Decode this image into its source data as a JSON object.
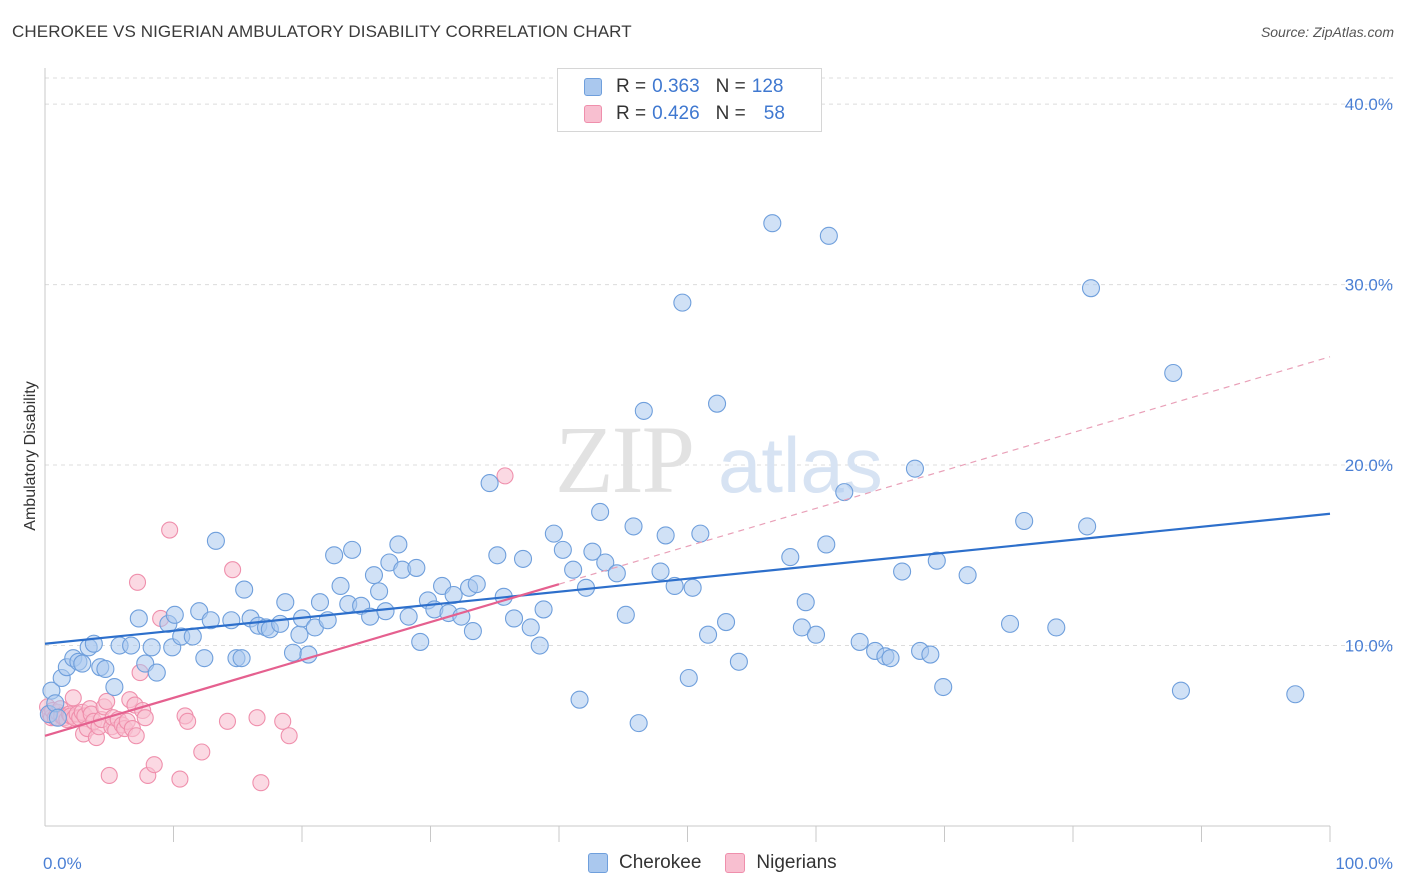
{
  "header": {
    "title": "CHEROKEE VS NIGERIAN AMBULATORY DISABILITY CORRELATION CHART",
    "source": "Source: ZipAtlas.com"
  },
  "legend": {
    "rows": [
      {
        "r_label": "R =",
        "r_value": "0.363",
        "n_label": "N =",
        "n_value": "128"
      },
      {
        "r_label": "R =",
        "r_value": "0.426",
        "n_label": "N =",
        "n_value": "58"
      }
    ]
  },
  "watermark": {
    "zip": "ZIP",
    "atlas": "atlas"
  },
  "colors": {
    "cherokee_fill": "#aac8ee",
    "cherokee_stroke": "#6f9fdc",
    "cherokee_line": "#2d6fcb",
    "nigerian_fill": "#f8bfd0",
    "nigerian_stroke": "#ef8fac",
    "nigerian_line": "#e5608f",
    "tick_text": "#4a7fd4"
  },
  "chart_data": {
    "type": "scatter",
    "title": "CHEROKEE VS NIGERIAN AMBULATORY DISABILITY CORRELATION CHART",
    "xlabel": "",
    "ylabel": "Ambulatory Disability",
    "xlim": [
      0,
      100
    ],
    "ylim": [
      0,
      42
    ],
    "x_tick_labels": [
      "0.0%",
      "100.0%"
    ],
    "y_ticks": [
      10,
      20,
      30,
      40
    ],
    "y_tick_labels": [
      "10.0%",
      "20.0%",
      "30.0%",
      "40.0%"
    ],
    "grid": true,
    "legend_position": "top-center",
    "series": [
      {
        "name": "Cherokee",
        "r": 0.363,
        "n": 128,
        "trend": {
          "x0": 0,
          "y0": 10.1,
          "x1": 100,
          "y1": 17.3
        },
        "points": [
          [
            0.3,
            6.2
          ],
          [
            0.5,
            7.5
          ],
          [
            0.8,
            6.8
          ],
          [
            1.0,
            6.0
          ],
          [
            1.3,
            8.2
          ],
          [
            1.7,
            8.8
          ],
          [
            2.2,
            9.3
          ],
          [
            2.6,
            9.1
          ],
          [
            2.9,
            9.0
          ],
          [
            3.4,
            9.9
          ],
          [
            3.8,
            10.1
          ],
          [
            4.3,
            8.8
          ],
          [
            4.7,
            8.7
          ],
          [
            5.4,
            7.7
          ],
          [
            5.8,
            10.0
          ],
          [
            6.7,
            10.0
          ],
          [
            7.3,
            11.5
          ],
          [
            7.8,
            9.0
          ],
          [
            8.3,
            9.9
          ],
          [
            8.7,
            8.5
          ],
          [
            9.6,
            11.2
          ],
          [
            9.9,
            9.9
          ],
          [
            10.1,
            11.7
          ],
          [
            10.6,
            10.5
          ],
          [
            11.5,
            10.5
          ],
          [
            12.0,
            11.9
          ],
          [
            12.4,
            9.3
          ],
          [
            12.9,
            11.4
          ],
          [
            13.3,
            15.8
          ],
          [
            14.5,
            11.4
          ],
          [
            14.9,
            9.3
          ],
          [
            15.3,
            9.3
          ],
          [
            15.5,
            13.1
          ],
          [
            16.0,
            11.5
          ],
          [
            16.6,
            11.1
          ],
          [
            17.2,
            11.0
          ],
          [
            17.5,
            10.9
          ],
          [
            18.3,
            11.2
          ],
          [
            18.7,
            12.4
          ],
          [
            19.3,
            9.6
          ],
          [
            19.8,
            10.6
          ],
          [
            20.0,
            11.5
          ],
          [
            20.5,
            9.5
          ],
          [
            21.0,
            11.0
          ],
          [
            21.4,
            12.4
          ],
          [
            22.0,
            11.4
          ],
          [
            22.5,
            15.0
          ],
          [
            23.0,
            13.3
          ],
          [
            23.6,
            12.3
          ],
          [
            23.9,
            15.3
          ],
          [
            24.6,
            12.2
          ],
          [
            25.3,
            11.6
          ],
          [
            25.6,
            13.9
          ],
          [
            26.0,
            13.0
          ],
          [
            26.5,
            11.9
          ],
          [
            26.8,
            14.6
          ],
          [
            27.5,
            15.6
          ],
          [
            27.8,
            14.2
          ],
          [
            28.3,
            11.6
          ],
          [
            28.9,
            14.3
          ],
          [
            29.2,
            10.2
          ],
          [
            29.8,
            12.5
          ],
          [
            30.3,
            12.0
          ],
          [
            30.9,
            13.3
          ],
          [
            31.4,
            11.8
          ],
          [
            31.8,
            12.8
          ],
          [
            32.4,
            11.6
          ],
          [
            33.0,
            13.2
          ],
          [
            33.3,
            10.8
          ],
          [
            33.6,
            13.4
          ],
          [
            34.6,
            19.0
          ],
          [
            35.2,
            15.0
          ],
          [
            35.7,
            12.7
          ],
          [
            36.5,
            11.5
          ],
          [
            37.2,
            14.8
          ],
          [
            37.8,
            11.0
          ],
          [
            38.5,
            10.0
          ],
          [
            38.8,
            12.0
          ],
          [
            39.6,
            16.2
          ],
          [
            40.3,
            15.3
          ],
          [
            41.1,
            14.2
          ],
          [
            41.6,
            7.0
          ],
          [
            42.1,
            13.2
          ],
          [
            42.6,
            15.2
          ],
          [
            43.2,
            17.4
          ],
          [
            43.6,
            14.6
          ],
          [
            44.5,
            14.0
          ],
          [
            45.2,
            11.7
          ],
          [
            45.8,
            16.6
          ],
          [
            46.2,
            5.7
          ],
          [
            46.6,
            23.0
          ],
          [
            47.9,
            14.1
          ],
          [
            48.3,
            16.1
          ],
          [
            49.0,
            13.3
          ],
          [
            49.6,
            29.0
          ],
          [
            50.1,
            8.2
          ],
          [
            50.4,
            13.2
          ],
          [
            51.0,
            16.2
          ],
          [
            51.6,
            10.6
          ],
          [
            52.3,
            23.4
          ],
          [
            53.0,
            11.3
          ],
          [
            54.0,
            9.1
          ],
          [
            56.6,
            33.4
          ],
          [
            58.0,
            14.9
          ],
          [
            58.9,
            11.0
          ],
          [
            59.2,
            12.4
          ],
          [
            60.0,
            10.6
          ],
          [
            60.8,
            15.6
          ],
          [
            61.0,
            32.7
          ],
          [
            62.2,
            18.5
          ],
          [
            63.4,
            10.2
          ],
          [
            64.6,
            9.7
          ],
          [
            65.4,
            9.4
          ],
          [
            65.8,
            9.3
          ],
          [
            66.7,
            14.1
          ],
          [
            67.7,
            19.8
          ],
          [
            68.1,
            9.7
          ],
          [
            68.9,
            9.5
          ],
          [
            69.4,
            14.7
          ],
          [
            69.9,
            7.7
          ],
          [
            71.8,
            13.9
          ],
          [
            75.1,
            11.2
          ],
          [
            76.2,
            16.9
          ],
          [
            78.7,
            11.0
          ],
          [
            81.1,
            16.6
          ],
          [
            81.4,
            29.8
          ],
          [
            87.8,
            25.1
          ],
          [
            88.4,
            7.5
          ],
          [
            97.3,
            7.3
          ]
        ]
      },
      {
        "name": "Nigerians",
        "r": 0.426,
        "n": 58,
        "trend": {
          "x0": 0,
          "y0": 5.0,
          "x1": 40,
          "y1": 13.4
        },
        "trend_ext": {
          "x0": 40,
          "y0": 13.4,
          "x1": 100,
          "y1": 26.0
        },
        "points": [
          [
            0.2,
            6.6
          ],
          [
            0.4,
            6.2
          ],
          [
            0.5,
            6.0
          ],
          [
            0.6,
            6.4
          ],
          [
            0.8,
            6.0
          ],
          [
            1.0,
            6.3
          ],
          [
            1.2,
            6.5
          ],
          [
            1.3,
            6.1
          ],
          [
            1.5,
            6.0
          ],
          [
            1.7,
            5.9
          ],
          [
            1.9,
            6.2
          ],
          [
            2.0,
            6.1
          ],
          [
            2.2,
            7.1
          ],
          [
            2.3,
            6.0
          ],
          [
            2.5,
            6.2
          ],
          [
            2.7,
            6.0
          ],
          [
            2.9,
            6.3
          ],
          [
            3.0,
            5.1
          ],
          [
            3.1,
            6.1
          ],
          [
            3.3,
            5.4
          ],
          [
            3.5,
            6.5
          ],
          [
            3.6,
            6.2
          ],
          [
            3.8,
            5.8
          ],
          [
            4.0,
            4.9
          ],
          [
            4.2,
            5.5
          ],
          [
            4.4,
            5.9
          ],
          [
            4.6,
            6.6
          ],
          [
            4.8,
            6.9
          ],
          [
            5.0,
            2.8
          ],
          [
            5.2,
            5.5
          ],
          [
            5.3,
            6.0
          ],
          [
            5.5,
            5.3
          ],
          [
            5.7,
            5.9
          ],
          [
            6.0,
            5.6
          ],
          [
            6.2,
            5.4
          ],
          [
            6.4,
            5.8
          ],
          [
            6.6,
            7.0
          ],
          [
            6.8,
            5.4
          ],
          [
            7.0,
            6.7
          ],
          [
            7.1,
            5.0
          ],
          [
            7.2,
            13.5
          ],
          [
            7.4,
            8.5
          ],
          [
            7.6,
            6.4
          ],
          [
            7.8,
            6.0
          ],
          [
            8.0,
            2.8
          ],
          [
            8.5,
            3.4
          ],
          [
            9.0,
            11.5
          ],
          [
            9.7,
            16.4
          ],
          [
            10.5,
            2.6
          ],
          [
            10.9,
            6.1
          ],
          [
            11.1,
            5.8
          ],
          [
            12.2,
            4.1
          ],
          [
            14.2,
            5.8
          ],
          [
            14.6,
            14.2
          ],
          [
            16.5,
            6.0
          ],
          [
            16.8,
            2.4
          ],
          [
            18.5,
            5.8
          ],
          [
            19.0,
            5.0
          ],
          [
            35.8,
            19.4
          ]
        ]
      }
    ]
  }
}
